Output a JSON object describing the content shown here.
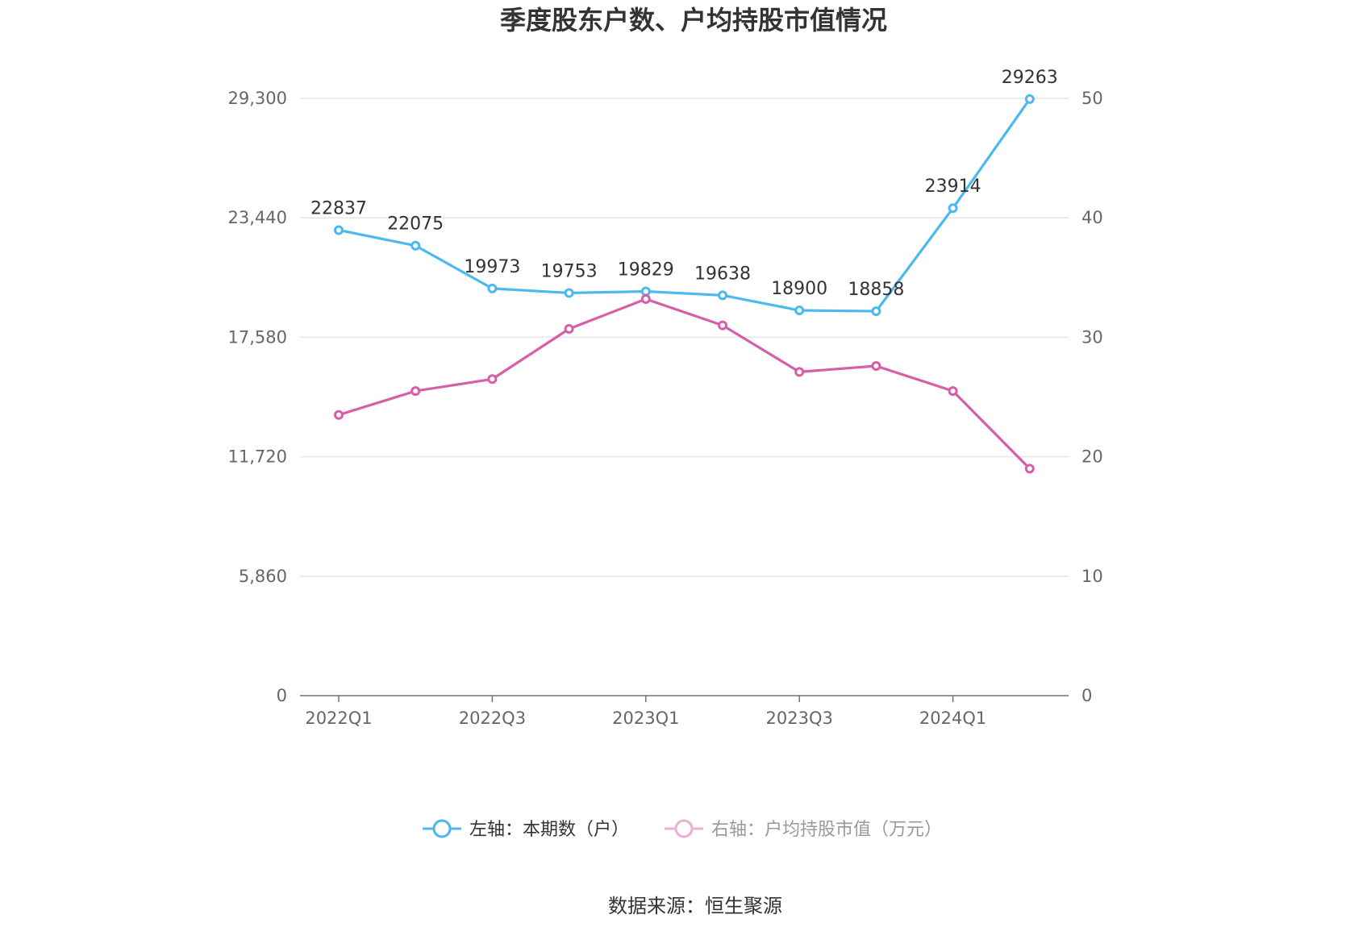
{
  "title": "季度股东户数、户均持股市值情况",
  "source": "数据来源：恒生聚源",
  "legend": {
    "series_a": "左轴：本期数（户）",
    "series_b": "右轴：户均持股市值（万元）"
  },
  "chart_data": {
    "type": "line",
    "categories": [
      "2022Q1",
      "2022Q2",
      "2022Q3",
      "2022Q4",
      "2023Q1",
      "2023Q2",
      "2023Q3",
      "2023Q4",
      "2024Q1",
      "2024Q2"
    ],
    "x_tick_labels": [
      "2022Q1",
      "2022Q3",
      "2023Q1",
      "2023Q3",
      "2024Q1"
    ],
    "left_axis": {
      "ticks": [
        "0",
        "5,860",
        "11,720",
        "17,580",
        "23,440",
        "29,300"
      ],
      "ylim": [
        0,
        29300
      ]
    },
    "right_axis": {
      "ticks": [
        "0",
        "10",
        "20",
        "30",
        "40",
        "50"
      ],
      "ylim": [
        0,
        50
      ]
    },
    "grid": true,
    "series": [
      {
        "name": "左轴：本期数（户）",
        "axis": "left",
        "color": "#4db8f0",
        "values": [
          22837,
          22075,
          19973,
          19753,
          19829,
          19638,
          18900,
          18858,
          23914,
          29263
        ],
        "labels": [
          "22837",
          "22075",
          "19973",
          "19753",
          "19829",
          "19638",
          "18900",
          "18858",
          "23914",
          "29263"
        ]
      },
      {
        "name": "右轴：户均持股市值（万元）",
        "axis": "right",
        "color": "#d65fa8",
        "values": [
          23.5,
          25.5,
          26.5,
          30.7,
          33.2,
          31.0,
          27.1,
          27.6,
          25.5,
          19.0
        ]
      }
    ]
  }
}
